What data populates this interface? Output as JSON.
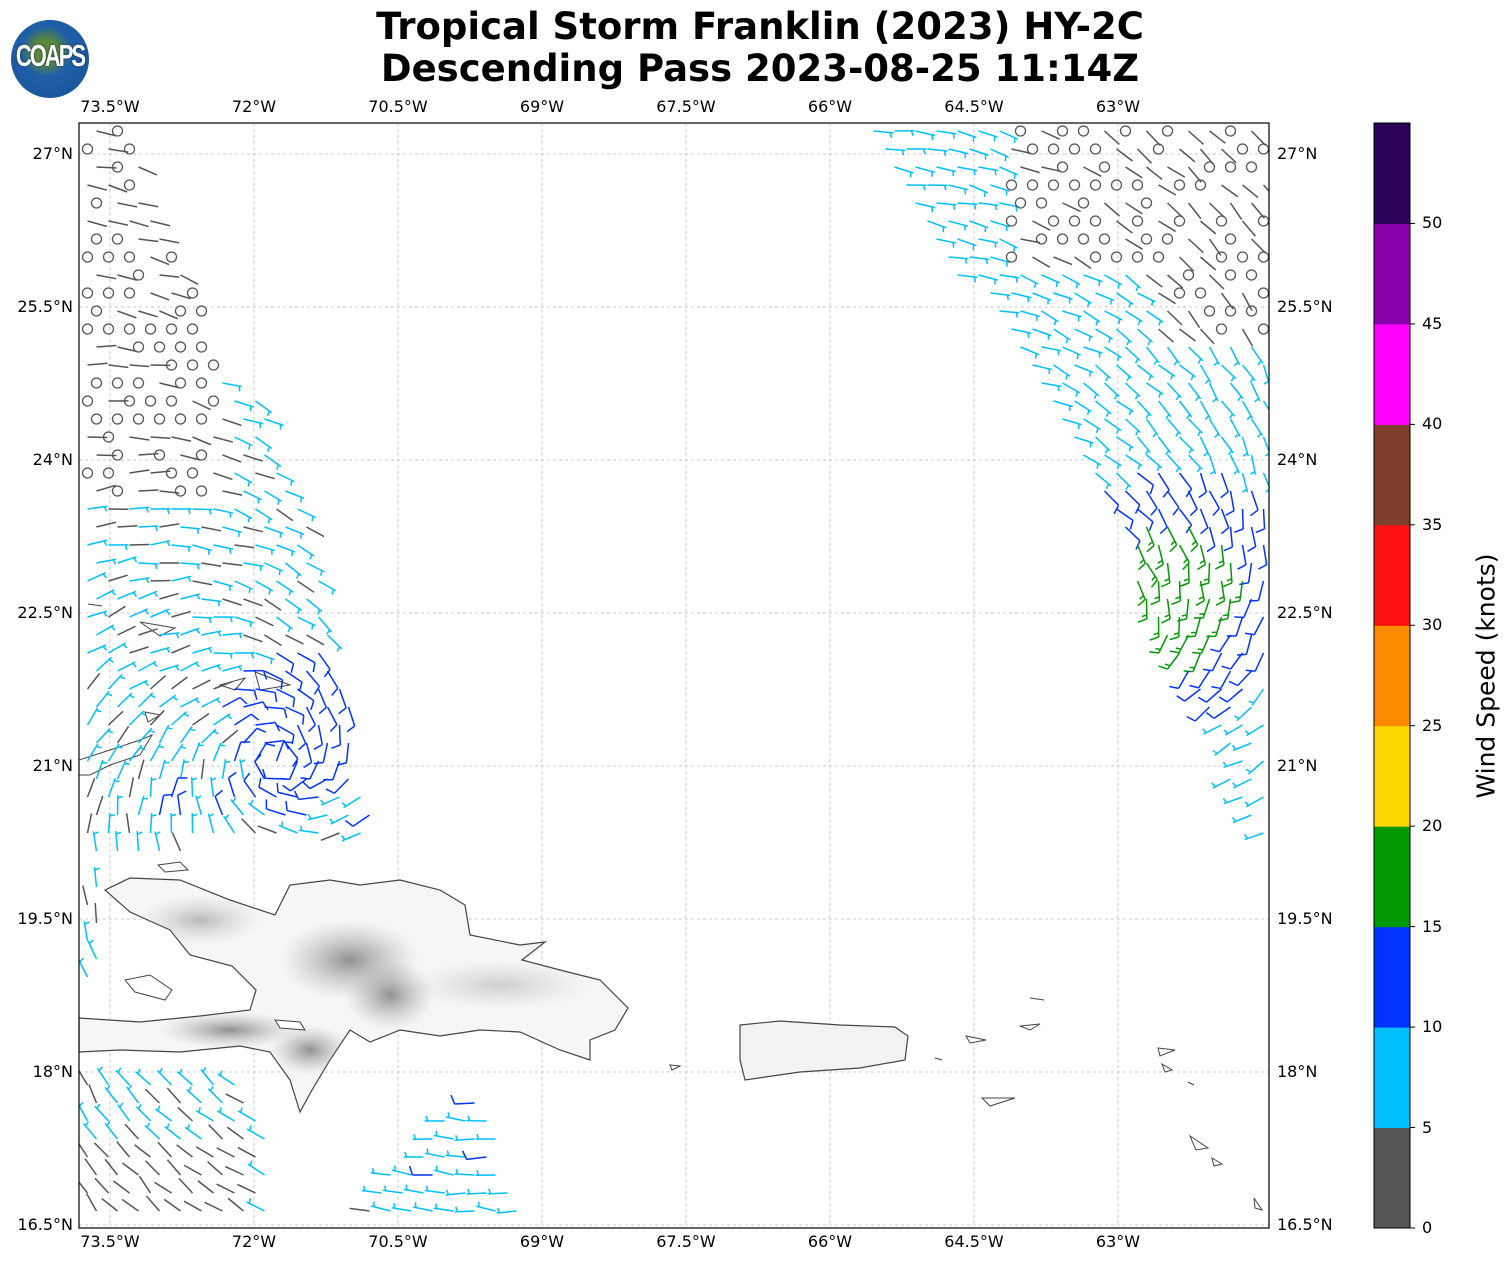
{
  "title": {
    "line1": "Tropical Storm Franklin (2023) HY-2C",
    "line2": "Descending Pass 2023-08-25 11:14Z"
  },
  "logo": {
    "text": "COAPS"
  },
  "axes": {
    "lon_ticks": [
      "73.5°W",
      "72°W",
      "70.5°W",
      "69°W",
      "67.5°W",
      "66°W",
      "64.5°W",
      "63°W"
    ],
    "lon_values": [
      -73.5,
      -72,
      -70.5,
      -69,
      -67.5,
      -66,
      -64.5,
      -63
    ],
    "lat_ticks": [
      "27°N",
      "25.5°N",
      "24°N",
      "22.5°N",
      "21°N",
      "19.5°N",
      "18°N",
      "16.5°N"
    ],
    "lat_values": [
      27,
      25.5,
      24,
      22.5,
      21,
      19.5,
      18,
      16.5
    ],
    "lon_range": [
      -73.82,
      -62.0
    ],
    "lat_range": [
      16.5,
      27.3
    ]
  },
  "colorbar": {
    "label": "Wind Speed (knots)",
    "ticks": [
      "0",
      "5",
      "10",
      "15",
      "20",
      "25",
      "30",
      "35",
      "40",
      "45",
      "50"
    ],
    "bounds": [
      0,
      55
    ],
    "colors": [
      "#555555",
      "#00bfff",
      "#0033ff",
      "#009900",
      "#ffd700",
      "#ff8c00",
      "#ff1010",
      "#7f3f2a",
      "#ff00ff",
      "#8800aa",
      "#2a0059"
    ]
  }
}
